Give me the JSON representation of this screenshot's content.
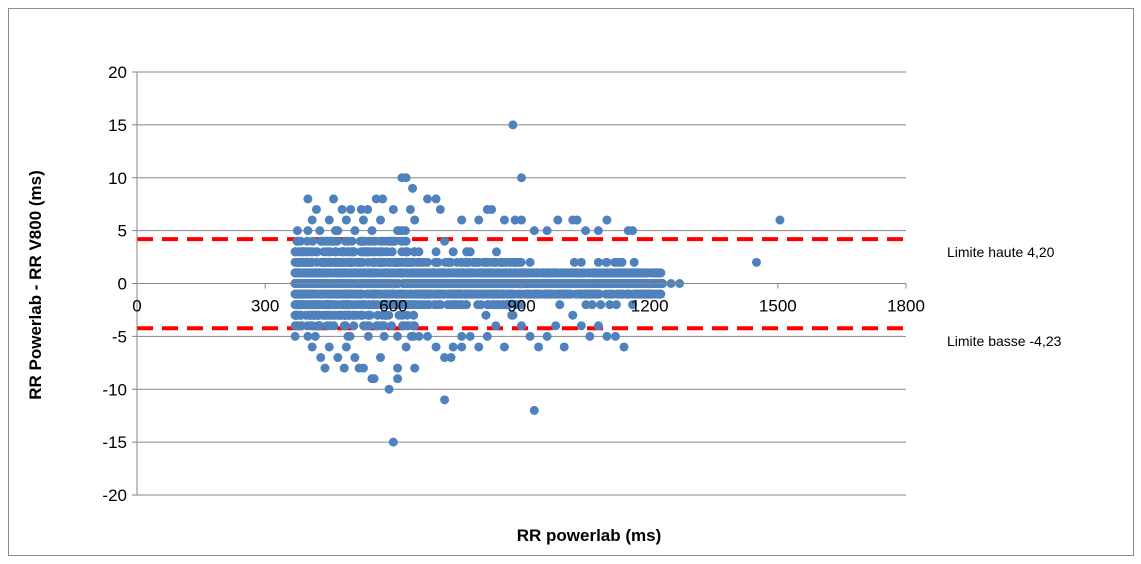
{
  "chart_data": {
    "type": "scatter",
    "title": "",
    "xlabel": "RR powerlab (ms)",
    "ylabel": "RR Powerlab - RR V800 (ms)",
    "xlim": [
      0,
      1800
    ],
    "ylim": [
      -20,
      20
    ],
    "x_ticks": [
      0,
      300,
      600,
      900,
      1200,
      1500,
      1800
    ],
    "y_ticks": [
      -20,
      -15,
      -10,
      -5,
      0,
      5,
      10,
      15,
      20
    ],
    "grid": "horizontal",
    "legend": "none",
    "point_color": "#4f81bd",
    "reference_lines": [
      {
        "label": "Limite haute 4,20",
        "y": 4.2,
        "color": "#ff0000",
        "style": "dashed"
      },
      {
        "label": "Limite basse -4,23",
        "y": -4.23,
        "color": "#ff0000",
        "style": "dashed"
      }
    ],
    "series": [
      {
        "points": [
          [
            880,
            15
          ],
          [
            600,
            -15
          ],
          [
            620,
            10
          ],
          [
            630,
            10
          ],
          [
            645,
            9
          ],
          [
            900,
            10
          ],
          [
            720,
            -11
          ],
          [
            930,
            -12
          ],
          [
            1505,
            6
          ],
          [
            1450,
            2
          ],
          [
            400,
            8
          ],
          [
            460,
            8
          ],
          [
            560,
            8
          ],
          [
            575,
            8
          ],
          [
            600,
            7
          ],
          [
            640,
            7
          ],
          [
            680,
            8
          ],
          [
            700,
            8
          ],
          [
            710,
            7
          ],
          [
            420,
            7
          ],
          [
            480,
            7
          ],
          [
            500,
            7
          ],
          [
            525,
            7
          ],
          [
            540,
            7
          ],
          [
            650,
            6
          ],
          [
            760,
            6
          ],
          [
            800,
            6
          ],
          [
            820,
            7
          ],
          [
            830,
            7
          ],
          [
            860,
            6
          ],
          [
            885,
            6
          ],
          [
            900,
            6
          ],
          [
            930,
            5
          ],
          [
            960,
            5
          ],
          [
            985,
            6
          ],
          [
            1020,
            6
          ],
          [
            1030,
            6
          ],
          [
            1050,
            5
          ],
          [
            1080,
            5
          ],
          [
            1100,
            6
          ],
          [
            1150,
            5
          ],
          [
            1160,
            5
          ],
          [
            370,
            3
          ],
          [
            370,
            -3
          ],
          [
            380,
            2
          ],
          [
            380,
            -2
          ],
          [
            400,
            5
          ],
          [
            400,
            -5
          ],
          [
            410,
            6
          ],
          [
            410,
            -6
          ],
          [
            430,
            4
          ],
          [
            430,
            -7
          ],
          [
            450,
            6
          ],
          [
            450,
            -6
          ],
          [
            470,
            5
          ],
          [
            470,
            -7
          ],
          [
            490,
            6
          ],
          [
            490,
            -6
          ],
          [
            510,
            5
          ],
          [
            510,
            -7
          ],
          [
            530,
            6
          ],
          [
            530,
            -8
          ],
          [
            550,
            5
          ],
          [
            550,
            -9
          ],
          [
            570,
            6
          ],
          [
            570,
            -7
          ],
          [
            590,
            4
          ],
          [
            590,
            -10
          ],
          [
            610,
            5
          ],
          [
            610,
            -8
          ],
          [
            630,
            4
          ],
          [
            630,
            -6
          ],
          [
            660,
            3
          ],
          [
            660,
            -5
          ],
          [
            680,
            2
          ],
          [
            680,
            -5
          ],
          [
            700,
            3
          ],
          [
            700,
            -6
          ],
          [
            720,
            4
          ],
          [
            720,
            -7
          ],
          [
            740,
            3
          ],
          [
            740,
            -6
          ],
          [
            760,
            2
          ],
          [
            760,
            -5
          ],
          [
            780,
            3
          ],
          [
            780,
            -5
          ],
          [
            800,
            2
          ],
          [
            800,
            -6
          ],
          [
            820,
            2
          ],
          [
            820,
            -5
          ],
          [
            840,
            1
          ],
          [
            840,
            -4
          ],
          [
            860,
            1
          ],
          [
            860,
            -6
          ],
          [
            880,
            2
          ],
          [
            880,
            -3
          ],
          [
            900,
            1
          ],
          [
            900,
            -4
          ],
          [
            920,
            2
          ],
          [
            920,
            -5
          ],
          [
            940,
            1
          ],
          [
            940,
            -6
          ],
          [
            960,
            1
          ],
          [
            960,
            -5
          ],
          [
            980,
            1
          ],
          [
            980,
            -4
          ],
          [
            1000,
            1
          ],
          [
            1000,
            -6
          ],
          [
            1020,
            1
          ],
          [
            1020,
            -3
          ],
          [
            1040,
            2
          ],
          [
            1040,
            -4
          ],
          [
            1060,
            1
          ],
          [
            1060,
            -5
          ],
          [
            1080,
            2
          ],
          [
            1080,
            -4
          ],
          [
            1100,
            1
          ],
          [
            1100,
            -5
          ],
          [
            1120,
            1
          ],
          [
            1120,
            -5
          ],
          [
            1140,
            1
          ],
          [
            1140,
            -6
          ],
          [
            1160,
            1
          ],
          [
            1160,
            -2
          ],
          [
            1180,
            1
          ],
          [
            1180,
            -1
          ],
          [
            1200,
            0
          ],
          [
            1210,
            0
          ],
          [
            1230,
            0
          ],
          [
            1250,
            0
          ],
          [
            1270,
            0
          ],
          [
            440,
            -8
          ],
          [
            485,
            -8
          ],
          [
            520,
            -8
          ],
          [
            555,
            -9
          ],
          [
            610,
            -9
          ],
          [
            650,
            -8
          ],
          [
            735,
            -7
          ],
          [
            760,
            -6
          ]
        ]
      }
    ]
  }
}
